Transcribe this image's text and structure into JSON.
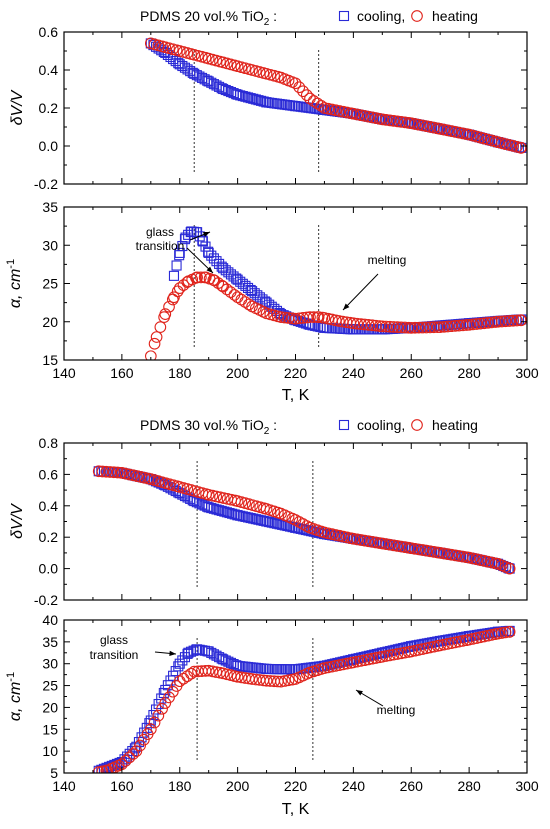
{
  "colors": {
    "cooling": "#2a2ad6",
    "heating": "#e0241c",
    "axis": "#000000"
  },
  "chart_data": [
    {
      "type": "scatter",
      "legend": {
        "prefix": "PDMS 20 vol.% TiO",
        "prefix_sub": "2",
        "prefix_suffix": " :",
        "cooling": "cooling,",
        "heating": "heating"
      },
      "xlim": [
        140,
        300
      ],
      "x_ticks": [
        "140",
        "160",
        "180",
        "200",
        "220",
        "240",
        "260",
        "280",
        "300"
      ],
      "xlabel": "T, K",
      "vlines": [
        185,
        228
      ],
      "panels": [
        {
          "ylabel": "δV/V",
          "ylim": [
            -0.2,
            0.6
          ],
          "y_ticks": [
            "-0.2",
            "0.0",
            "0.2",
            "0.4",
            "0.6"
          ],
          "series": [
            {
              "name": "cooling",
              "marker": "square",
              "x": [
                170,
                175,
                180,
                185,
                190,
                195,
                200,
                210,
                220,
                230,
                240,
                250,
                260,
                270,
                280,
                290,
                298
              ],
              "y": [
                0.54,
                0.49,
                0.43,
                0.38,
                0.34,
                0.3,
                0.27,
                0.23,
                0.21,
                0.19,
                0.17,
                0.14,
                0.12,
                0.09,
                0.06,
                0.02,
                -0.01
              ]
            },
            {
              "name": "heating",
              "marker": "circle",
              "x": [
                170,
                175,
                180,
                185,
                190,
                195,
                200,
                205,
                210,
                215,
                220,
                225,
                230,
                240,
                250,
                260,
                270,
                280,
                290,
                298
              ],
              "y": [
                0.54,
                0.52,
                0.5,
                0.48,
                0.46,
                0.44,
                0.42,
                0.4,
                0.38,
                0.36,
                0.33,
                0.25,
                0.2,
                0.17,
                0.14,
                0.12,
                0.09,
                0.06,
                0.02,
                -0.01
              ]
            }
          ]
        },
        {
          "ylabel": "α, cm",
          "ylabel_sup": "-1",
          "ylim": [
            15,
            35
          ],
          "y_ticks": [
            "15",
            "20",
            "25",
            "30",
            "35"
          ],
          "annotations": [
            "glass",
            "transition",
            "melting"
          ],
          "series": [
            {
              "name": "cooling",
              "marker": "square",
              "x": [
                178,
                180,
                182,
                184,
                186,
                188,
                190,
                195,
                200,
                205,
                210,
                215,
                220,
                225,
                230,
                240,
                250,
                260,
                270,
                280,
                290,
                298
              ],
              "y": [
                26,
                29,
                31,
                31.8,
                31.7,
                30.5,
                29,
                27,
                25.5,
                24,
                22.5,
                21,
                20.2,
                19.6,
                19.2,
                19,
                19,
                19.2,
                19.5,
                19.8,
                20.1,
                20.3
              ]
            },
            {
              "name": "heating",
              "marker": "circle",
              "x": [
                170,
                172,
                175,
                178,
                180,
                183,
                186,
                189,
                192,
                195,
                200,
                205,
                210,
                215,
                220,
                225,
                228,
                230,
                235,
                240,
                250,
                260,
                270,
                280,
                290,
                298
              ],
              "y": [
                15.5,
                18,
                21,
                23.2,
                24.4,
                25.3,
                25.8,
                25.8,
                25.4,
                24.6,
                23.2,
                22,
                21.1,
                20.6,
                20.4,
                20.6,
                20.6,
                20.5,
                20.1,
                19.8,
                19.4,
                19.2,
                19.3,
                19.6,
                20,
                20.2
              ]
            }
          ]
        }
      ]
    },
    {
      "type": "scatter",
      "legend": {
        "prefix": "PDMS 30 vol.% TiO",
        "prefix_sub": "2",
        "prefix_suffix": " :",
        "cooling": "cooling,",
        "heating": "heating"
      },
      "xlim": [
        140,
        300
      ],
      "x_ticks": [
        "140",
        "160",
        "180",
        "200",
        "220",
        "240",
        "260",
        "280",
        "300"
      ],
      "xlabel": "T, K",
      "vlines": [
        186,
        226
      ],
      "panels": [
        {
          "ylabel": "δV/V",
          "ylim": [
            -0.2,
            0.8
          ],
          "y_ticks": [
            "-0.2",
            "0.0",
            "0.2",
            "0.4",
            "0.6",
            "0.8"
          ],
          "series": [
            {
              "name": "cooling",
              "marker": "square",
              "x": [
                152,
                160,
                170,
                175,
                180,
                185,
                190,
                200,
                210,
                220,
                230,
                240,
                250,
                260,
                270,
                280,
                290,
                294
              ],
              "y": [
                0.62,
                0.61,
                0.57,
                0.53,
                0.48,
                0.43,
                0.39,
                0.34,
                0.3,
                0.26,
                0.22,
                0.19,
                0.16,
                0.13,
                0.1,
                0.07,
                0.03,
                0.0
              ]
            },
            {
              "name": "heating",
              "marker": "circle",
              "x": [
                152,
                160,
                170,
                180,
                190,
                200,
                210,
                215,
                220,
                225,
                230,
                240,
                250,
                260,
                270,
                280,
                290,
                294
              ],
              "y": [
                0.62,
                0.61,
                0.57,
                0.52,
                0.47,
                0.43,
                0.38,
                0.35,
                0.31,
                0.26,
                0.23,
                0.19,
                0.16,
                0.13,
                0.1,
                0.07,
                0.03,
                0.0
              ]
            }
          ]
        },
        {
          "ylabel": "α, cm",
          "ylabel_sup": "-1",
          "ylim": [
            5,
            40
          ],
          "y_ticks": [
            "5",
            "10",
            "15",
            "20",
            "25",
            "30",
            "35",
            "40"
          ],
          "annotations": [
            "glass",
            "transition",
            "melting"
          ],
          "series": [
            {
              "name": "cooling",
              "marker": "square",
              "x": [
                152,
                160,
                165,
                170,
                175,
                180,
                183,
                186,
                190,
                195,
                200,
                210,
                220,
                230,
                240,
                250,
                260,
                270,
                280,
                290,
                294
              ],
              "y": [
                5.5,
                7.5,
                11,
                17,
                24,
                30,
                32.5,
                33.3,
                32.8,
                31,
                29.5,
                28.8,
                28.7,
                29.5,
                31,
                32.5,
                34,
                35.2,
                36.3,
                37.3,
                37.5
              ]
            },
            {
              "name": "heating",
              "marker": "circle",
              "x": [
                152,
                155,
                160,
                165,
                170,
                175,
                180,
                185,
                190,
                195,
                200,
                205,
                210,
                215,
                220,
                225,
                230,
                240,
                250,
                260,
                270,
                280,
                290,
                294
              ],
              "y": [
                5.2,
                5.6,
                7,
                10,
                15,
                21,
                26,
                28.2,
                28.4,
                27.8,
                27,
                26.5,
                26.1,
                25.9,
                26.5,
                28,
                29,
                30.3,
                31.6,
                32.8,
                34.2,
                35.5,
                36.9,
                37.3
              ]
            }
          ]
        }
      ]
    }
  ]
}
